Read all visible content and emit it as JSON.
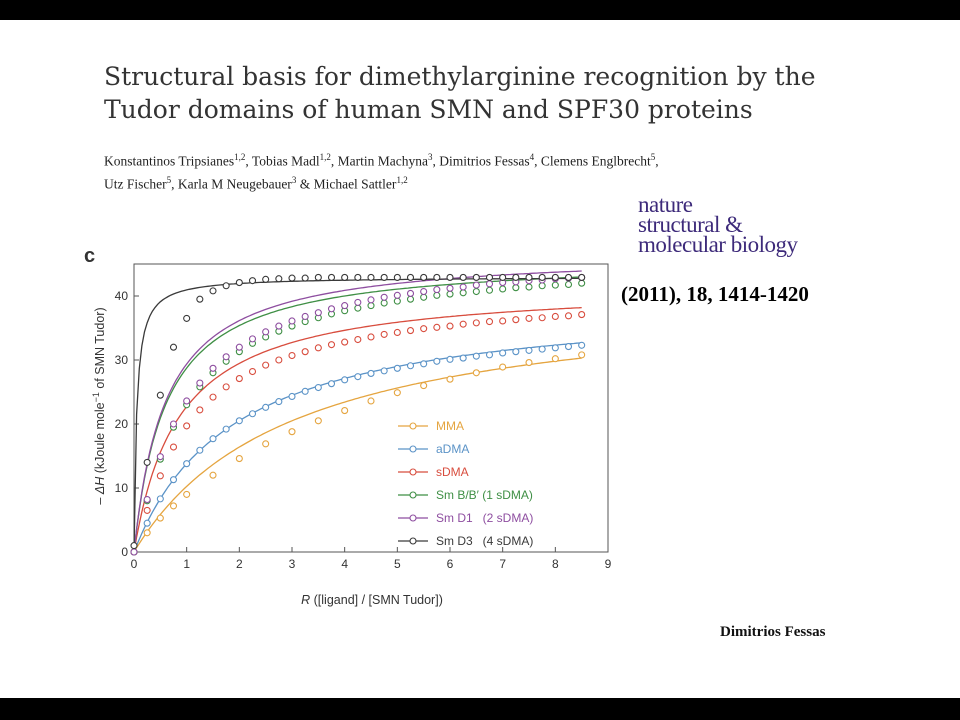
{
  "paper": {
    "title_line1": "Structural basis for dimethylarginine recognition by the",
    "title_line2": "Tudor domains of human SMN and SPF30 proteins",
    "authors": [
      {
        "name": "Konstantinos Tripsianes",
        "aff": "1,2",
        "sep": ", "
      },
      {
        "name": "Tobias Madl",
        "aff": "1,2",
        "sep": ", "
      },
      {
        "name": "Martin Machyna",
        "aff": "3",
        "sep": ", "
      },
      {
        "name": "Dimitrios Fessas",
        "aff": "4",
        "sep": ", "
      },
      {
        "name": "Clemens Englbrecht",
        "aff": "5",
        "sep": ","
      },
      {
        "name": "Utz Fischer",
        "aff": "5",
        "sep": ", "
      },
      {
        "name": "Karla M Neugebauer",
        "aff": "3",
        "sep": " & "
      },
      {
        "name": "Michael Sattler",
        "aff": "1,2",
        "sep": ""
      }
    ]
  },
  "journal": {
    "line1": "nature",
    "line2": "structural &",
    "line3": "molecular biology",
    "color": "#3d2a7a"
  },
  "citation": "(2011), 18,  1414-1420",
  "presenter": "Dimitrios Fessas",
  "chart_data": {
    "type": "line",
    "panel_label": "c",
    "xlabel_italic": "R",
    "xlabel_rest": " ([ligand] / [SMN Tudor])",
    "ylabel_prefix": "– ",
    "ylabel_italic": "ΔH",
    "ylabel_rest": " (kJoule mole",
    "ylabel_sup": "−1",
    "ylabel_tail": " of SMN Tudor)",
    "xlim": [
      0,
      9
    ],
    "ylim": [
      0,
      45
    ],
    "xticks": [
      0,
      1,
      2,
      3,
      4,
      5,
      6,
      7,
      8,
      9
    ],
    "yticks": [
      0,
      10,
      20,
      30,
      40
    ],
    "legend_position": "lower-right",
    "series": [
      {
        "name": "MMA",
        "color": "#e5a540",
        "Hmax": 41,
        "Kd": 3.0,
        "x": [
          0,
          0.25,
          0.5,
          0.75,
          1,
          1.5,
          2,
          2.5,
          3,
          3.5,
          4,
          4.5,
          5,
          5.5,
          6,
          6.5,
          7,
          7.5,
          8,
          8.5
        ],
        "y": [
          0,
          3.0,
          5.3,
          7.2,
          9.0,
          12.0,
          14.6,
          16.9,
          18.8,
          20.5,
          22.1,
          23.6,
          24.9,
          26.0,
          27.0,
          28.0,
          28.9,
          29.6,
          30.2,
          30.8
        ]
      },
      {
        "name": "aDMA",
        "color": "#5b93c7",
        "Hmax": 40,
        "Kd": 1.9,
        "x": [
          0,
          0.25,
          0.5,
          0.75,
          1,
          1.25,
          1.5,
          1.75,
          2,
          2.25,
          2.5,
          2.75,
          3,
          3.25,
          3.5,
          3.75,
          4,
          4.25,
          4.5,
          4.75,
          5,
          5.25,
          5.5,
          5.75,
          6,
          6.25,
          6.5,
          6.75,
          7,
          7.25,
          7.5,
          7.75,
          8,
          8.25,
          8.5
        ],
        "y": [
          0,
          4.5,
          8.3,
          11.3,
          13.8,
          15.9,
          17.7,
          19.2,
          20.5,
          21.6,
          22.6,
          23.5,
          24.3,
          25.1,
          25.7,
          26.3,
          26.9,
          27.4,
          27.9,
          28.3,
          28.7,
          29.1,
          29.4,
          29.8,
          30.1,
          30.3,
          30.6,
          30.8,
          31.1,
          31.3,
          31.5,
          31.7,
          31.9,
          32.1,
          32.3
        ]
      },
      {
        "name": "sDMA",
        "color": "#d84d3e",
        "Hmax": 42,
        "Kd": 0.85,
        "x": [
          0,
          0.25,
          0.5,
          0.75,
          1,
          1.25,
          1.5,
          1.75,
          2,
          2.25,
          2.5,
          2.75,
          3,
          3.25,
          3.5,
          3.75,
          4,
          4.25,
          4.5,
          4.75,
          5,
          5.25,
          5.5,
          5.75,
          6,
          6.25,
          6.5,
          6.75,
          7,
          7.25,
          7.5,
          7.75,
          8,
          8.25,
          8.5
        ],
        "y": [
          0,
          6.5,
          11.9,
          16.4,
          19.7,
          22.2,
          24.2,
          25.8,
          27.1,
          28.2,
          29.2,
          30.0,
          30.7,
          31.3,
          31.9,
          32.4,
          32.8,
          33.2,
          33.6,
          34.0,
          34.3,
          34.6,
          34.9,
          35.1,
          35.3,
          35.6,
          35.8,
          36.0,
          36.1,
          36.3,
          36.5,
          36.6,
          36.8,
          36.9,
          37.1
        ]
      },
      {
        "name": "Sm B/B′ (1 sDMA)",
        "color": "#3f8f45",
        "Hmax": 46,
        "Kd": 0.6,
        "x": [
          0,
          0.25,
          0.5,
          0.75,
          1,
          1.25,
          1.5,
          1.75,
          2,
          2.25,
          2.5,
          2.75,
          3,
          3.25,
          3.5,
          3.75,
          4,
          4.25,
          4.5,
          4.75,
          5,
          5.25,
          5.5,
          5.75,
          6,
          6.25,
          6.5,
          6.75,
          7,
          7.25,
          7.5,
          7.75,
          8,
          8.25,
          8.5
        ],
        "y": [
          0,
          8.0,
          14.5,
          19.5,
          23.0,
          25.8,
          28.0,
          29.8,
          31.3,
          32.6,
          33.6,
          34.5,
          35.3,
          36.0,
          36.6,
          37.2,
          37.7,
          38.1,
          38.5,
          38.9,
          39.2,
          39.5,
          39.8,
          40.1,
          40.3,
          40.5,
          40.7,
          40.9,
          41.1,
          41.3,
          41.4,
          41.6,
          41.7,
          41.8,
          42.0
        ]
      },
      {
        "name": "Sm D1   (2 sDMA)",
        "color": "#8e4ea0",
        "Hmax": 47,
        "Kd": 0.6,
        "x": [
          0,
          0.25,
          0.5,
          0.75,
          1,
          1.25,
          1.5,
          1.75,
          2,
          2.25,
          2.5,
          2.75,
          3,
          3.25,
          3.5,
          3.75,
          4,
          4.25,
          4.5,
          4.75,
          5,
          5.25,
          5.5,
          5.75,
          6,
          6.25,
          6.5,
          6.75,
          7,
          7.25,
          7.5,
          7.75,
          8,
          8.25,
          8.5
        ],
        "y": [
          0,
          8.2,
          14.9,
          20.0,
          23.6,
          26.4,
          28.7,
          30.5,
          32.0,
          33.3,
          34.4,
          35.3,
          36.1,
          36.8,
          37.4,
          38.0,
          38.5,
          39.0,
          39.4,
          39.8,
          40.1,
          40.4,
          40.7,
          41.0,
          41.2,
          41.4,
          41.7,
          41.9,
          42.1,
          42.2,
          42.4,
          42.5,
          42.7,
          42.8,
          42.9
        ]
      },
      {
        "name": "Sm D3   (4 sDMA)",
        "color": "#3a3a3a",
        "Hmax": 43,
        "Kd": 0.05,
        "x": [
          0,
          0.25,
          0.5,
          0.75,
          1,
          1.25,
          1.5,
          1.75,
          2,
          2.25,
          2.5,
          2.75,
          3,
          3.25,
          3.5,
          3.75,
          4,
          4.25,
          4.5,
          4.75,
          5,
          5.25,
          5.5,
          5.75,
          6,
          6.25,
          6.5,
          6.75,
          7,
          7.25,
          7.5,
          7.75,
          8,
          8.25,
          8.5
        ],
        "y": [
          1.0,
          14.0,
          24.5,
          32.0,
          36.5,
          39.5,
          40.8,
          41.6,
          42.1,
          42.4,
          42.6,
          42.7,
          42.8,
          42.8,
          42.9,
          42.9,
          42.9,
          42.9,
          42.9,
          42.9,
          42.9,
          42.9,
          42.9,
          42.9,
          42.9,
          42.9,
          42.9,
          42.9,
          42.9,
          42.9,
          42.9,
          42.9,
          42.9,
          42.9,
          42.9
        ]
      }
    ]
  }
}
